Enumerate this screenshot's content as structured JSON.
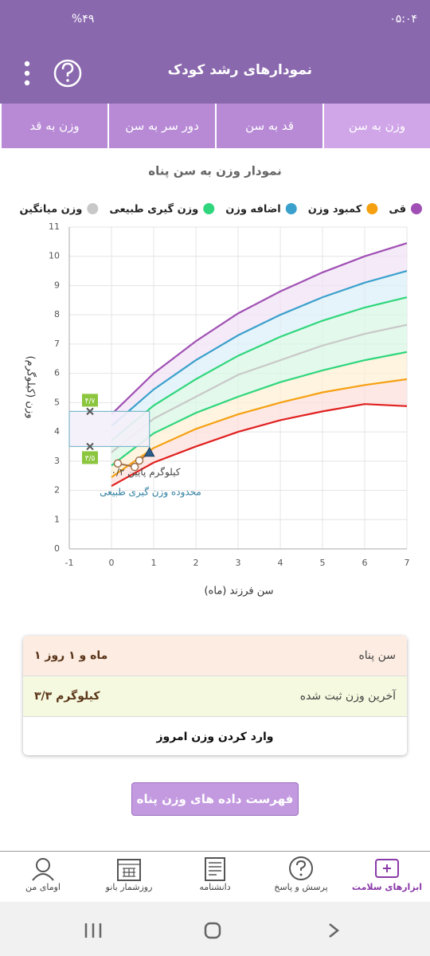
{
  "status_bar": {
    "time": "۰۵:۰۴",
    "battery": "%۴۹"
  },
  "header": {
    "title": "نمودارهای رشد کودک"
  },
  "tabs": [
    "وزن به سن",
    "قد به سن",
    "دور سر به سن",
    "وزن به قد"
  ],
  "chart_data": {
    "type": "line",
    "title": "نمودار وزن به سن  پناه",
    "x_label": "سن فرزند (ماه)",
    "y_label": "وزن (کیلوگرم)",
    "x": [
      0,
      1,
      2,
      3,
      4,
      5,
      6,
      7
    ],
    "xlim": [
      -1,
      7
    ],
    "xticks": [
      -1,
      0,
      1,
      2,
      3,
      4,
      5,
      6,
      7
    ],
    "ylim": [
      0,
      11
    ],
    "yticks": [
      0,
      1,
      2,
      3,
      4,
      5,
      6,
      7,
      8,
      9,
      10,
      11
    ],
    "grid": true,
    "series": [
      {
        "name": "قی",
        "color": "#a050b4",
        "fill": "#f1e3f6",
        "values": [
          4.6,
          6.0,
          7.1,
          8.05,
          8.8,
          9.45,
          10.0,
          10.45
        ]
      },
      {
        "name": "اضافه وزن",
        "color": "#3aa0cc",
        "fill": "#dcf0f8",
        "values": [
          4.2,
          5.45,
          6.45,
          7.3,
          8.0,
          8.6,
          9.1,
          9.5
        ]
      },
      {
        "name": "وزن گیری طبیعی",
        "color": "#2fd67c",
        "fill": "#d9f7e6",
        "values": [
          3.7,
          4.9,
          5.8,
          6.6,
          7.25,
          7.8,
          8.25,
          8.6
        ]
      },
      {
        "name": "وزن میانگین",
        "color": "#c8c8c8",
        "fill": "#d9f7e6",
        "values": [
          3.3,
          4.45,
          5.2,
          5.95,
          6.45,
          6.95,
          7.35,
          7.66
        ]
      },
      {
        "color": "#2fd67c",
        "fill": "#fdf0d6",
        "values": [
          2.85,
          3.95,
          4.65,
          5.2,
          5.7,
          6.1,
          6.45,
          6.73
        ]
      },
      {
        "name": "کمبود وزن",
        "color": "#f5a010",
        "fill": "#fde0dc",
        "values": [
          2.45,
          3.45,
          4.1,
          4.6,
          5.0,
          5.35,
          5.6,
          5.8
        ]
      },
      {
        "color": "#e02020",
        "values": [
          2.15,
          2.95,
          3.5,
          4.0,
          4.4,
          4.7,
          4.95,
          4.88
        ]
      }
    ],
    "legend_order": [
      0,
      5,
      1,
      2,
      3
    ],
    "normal_range": {
      "values": [
        3.5,
        4.7
      ],
      "value_labels": [
        "۳/۵",
        "۴/۷"
      ]
    },
    "measurements": {
      "x": [
        0.15,
        0.55,
        0.66,
        0.9
      ],
      "values": [
        2.92,
        2.8,
        3.02,
        3.3
      ]
    },
    "annotations": [
      "۰/۲ کیلوگرم پایین",
      "محدوده وزن گیری طبیعی"
    ]
  },
  "info_card": {
    "rows": [
      [
        "سن  پناه",
        "۱ ماه و ۱ روز"
      ],
      [
        "آخرین وزن ثبت شده",
        "۳/۳ کیلوگرم"
      ]
    ],
    "action": "وارد کردن وزن امروز"
  },
  "list_button": "فهرست داده های وزن  پناه",
  "bottom_nav": [
    "ابزارهای سلامت",
    "پرسش و پاسخ",
    "دانشنامه",
    "روزشمار بانو",
    "اومای من"
  ]
}
